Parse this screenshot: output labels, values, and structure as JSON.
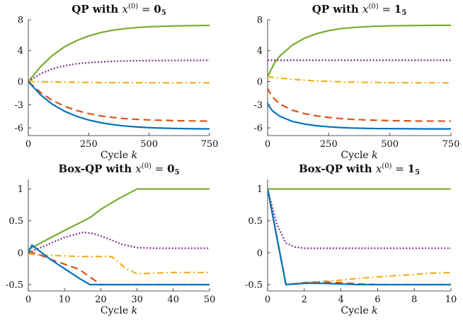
{
  "chart_data": [
    {
      "type": "line",
      "title": "QP with x^(0) = 0_5",
      "title_parts": [
        "QP with ",
        "x",
        "(0)",
        " = ",
        "0",
        "5"
      ],
      "xlabel_parts": [
        "Cycle ",
        "k"
      ],
      "xlim": [
        0,
        750
      ],
      "ylim": [
        -7,
        8
      ],
      "xticks": [
        0,
        250,
        500,
        750
      ],
      "yticks": [
        8,
        4,
        0,
        -3,
        -6
      ],
      "series": [
        {
          "name": "green",
          "color": "#77AC30",
          "style": "solid",
          "x": [
            0,
            50,
            100,
            150,
            200,
            250,
            300,
            350,
            400,
            450,
            500,
            550,
            600,
            650,
            700,
            750
          ],
          "y": [
            0,
            1.9,
            3.4,
            4.5,
            5.3,
            5.9,
            6.35,
            6.65,
            6.85,
            7.0,
            7.1,
            7.15,
            7.2,
            7.23,
            7.25,
            7.27
          ]
        },
        {
          "name": "purple",
          "color": "#7E2F8E",
          "style": "dotted",
          "x": [
            0,
            50,
            100,
            150,
            200,
            250,
            300,
            350,
            400,
            450,
            500,
            550,
            600,
            650,
            700,
            750
          ],
          "y": [
            0,
            1.0,
            1.65,
            2.05,
            2.3,
            2.45,
            2.55,
            2.62,
            2.66,
            2.69,
            2.71,
            2.72,
            2.73,
            2.74,
            2.74,
            2.75
          ]
        },
        {
          "name": "yellow",
          "color": "#EDB120",
          "style": "dashdot",
          "x": [
            0,
            50,
            100,
            150,
            200,
            250,
            300,
            350,
            400,
            450,
            500,
            550,
            600,
            650,
            700,
            750
          ],
          "y": [
            0,
            -0.02,
            -0.05,
            -0.08,
            -0.1,
            -0.12,
            -0.13,
            -0.14,
            -0.15,
            -0.15,
            -0.16,
            -0.16,
            -0.16,
            -0.16,
            -0.16,
            -0.16
          ]
        },
        {
          "name": "orange",
          "color": "#D95319",
          "style": "dashed",
          "x": [
            0,
            50,
            100,
            150,
            200,
            250,
            300,
            350,
            400,
            450,
            500,
            550,
            600,
            650,
            700,
            750
          ],
          "y": [
            0,
            -1.4,
            -2.45,
            -3.2,
            -3.75,
            -4.15,
            -4.45,
            -4.65,
            -4.8,
            -4.9,
            -4.97,
            -5.02,
            -5.06,
            -5.09,
            -5.11,
            -5.12
          ]
        },
        {
          "name": "blue",
          "color": "#0072BD",
          "style": "solid",
          "x": [
            0,
            50,
            100,
            150,
            200,
            250,
            300,
            350,
            400,
            450,
            500,
            550,
            600,
            650,
            700,
            750
          ],
          "y": [
            0,
            -1.7,
            -2.95,
            -3.85,
            -4.5,
            -4.98,
            -5.33,
            -5.58,
            -5.76,
            -5.88,
            -5.97,
            -6.03,
            -6.07,
            -6.1,
            -6.12,
            -6.13
          ]
        }
      ]
    },
    {
      "type": "line",
      "title": "QP with x^(0) = 1_5",
      "title_parts": [
        "QP with ",
        "x",
        "(0)",
        " = ",
        "1",
        "5"
      ],
      "xlabel_parts": [
        "Cycle ",
        "k"
      ],
      "xlim": [
        0,
        750
      ],
      "ylim": [
        -7,
        8
      ],
      "xticks": [
        0,
        250,
        500,
        750
      ],
      "yticks": [
        8,
        4,
        0,
        -3,
        -6
      ],
      "series": [
        {
          "name": "green",
          "color": "#77AC30",
          "style": "solid",
          "x": [
            0,
            10,
            30,
            50,
            100,
            150,
            200,
            250,
            300,
            350,
            400,
            450,
            500,
            550,
            600,
            650,
            700,
            750
          ],
          "y": [
            0.6,
            1.3,
            2.5,
            3.3,
            4.7,
            5.6,
            6.2,
            6.6,
            6.85,
            7.0,
            7.1,
            7.17,
            7.21,
            7.24,
            7.26,
            7.27,
            7.28,
            7.28
          ]
        },
        {
          "name": "purple",
          "color": "#7E2F8E",
          "style": "dotted",
          "x": [
            0,
            5,
            100,
            200,
            300,
            400,
            500,
            600,
            700,
            750
          ],
          "y": [
            2.75,
            2.75,
            2.75,
            2.75,
            2.75,
            2.75,
            2.75,
            2.75,
            2.75,
            2.75
          ]
        },
        {
          "name": "yellow",
          "color": "#EDB120",
          "style": "dashdot",
          "x": [
            0,
            5,
            50,
            100,
            150,
            200,
            250,
            300,
            400,
            500,
            600,
            700,
            750
          ],
          "y": [
            0.65,
            0.6,
            0.45,
            0.3,
            0.18,
            0.08,
            0.02,
            -0.04,
            -0.1,
            -0.14,
            -0.16,
            -0.17,
            -0.17
          ]
        },
        {
          "name": "orange",
          "color": "#D95319",
          "style": "dashed",
          "x": [
            0,
            1,
            20,
            50,
            100,
            150,
            200,
            250,
            300,
            350,
            400,
            450,
            500,
            550,
            600,
            650,
            700,
            750
          ],
          "y": [
            -0.8,
            -1.0,
            -2.0,
            -2.9,
            -3.7,
            -4.15,
            -4.45,
            -4.65,
            -4.8,
            -4.9,
            -4.97,
            -5.02,
            -5.06,
            -5.09,
            -5.11,
            -5.12,
            -5.12,
            -5.12
          ]
        },
        {
          "name": "blue",
          "color": "#0072BD",
          "style": "solid",
          "x": [
            0,
            1,
            20,
            50,
            100,
            150,
            200,
            250,
            300,
            350,
            400,
            450,
            500,
            550,
            600,
            650,
            700,
            750
          ],
          "y": [
            -2.7,
            -3.0,
            -3.8,
            -4.5,
            -5.15,
            -5.5,
            -5.72,
            -5.86,
            -5.96,
            -6.02,
            -6.06,
            -6.09,
            -6.1,
            -6.11,
            -6.12,
            -6.13,
            -6.13,
            -6.13
          ]
        }
      ]
    },
    {
      "type": "line",
      "title": "Box-QP with x^(0) = 0_5",
      "title_parts": [
        "Box-QP with ",
        "x",
        "(0)",
        " = ",
        "0",
        "5"
      ],
      "xlabel_parts": [
        "Cycle ",
        "k"
      ],
      "xlim": [
        0,
        50
      ],
      "ylim": [
        -0.6,
        1.15
      ],
      "xticks": [
        0,
        10,
        20,
        30,
        40,
        50
      ],
      "yticks": [
        1,
        0.5,
        0,
        -0.5
      ],
      "series": [
        {
          "name": "green",
          "color": "#77AC30",
          "style": "solid",
          "x": [
            0,
            5,
            10,
            17,
            20,
            25,
            30,
            35,
            40,
            45,
            50
          ],
          "y": [
            0.05,
            0.2,
            0.35,
            0.55,
            0.68,
            0.85,
            1.0,
            1.0,
            1.0,
            1.0,
            1.0
          ]
        },
        {
          "name": "purple",
          "color": "#7E2F8E",
          "style": "dotted",
          "x": [
            0,
            5,
            10,
            15,
            18,
            22,
            26,
            30,
            35,
            40,
            45,
            50
          ],
          "y": [
            0.0,
            0.12,
            0.24,
            0.32,
            0.3,
            0.22,
            0.13,
            0.08,
            0.07,
            0.07,
            0.07,
            0.07
          ]
        },
        {
          "name": "yellow",
          "color": "#EDB120",
          "style": "dashdot",
          "x": [
            0,
            5,
            10,
            15,
            20,
            23,
            27,
            30,
            35,
            40,
            45,
            50
          ],
          "y": [
            -0.02,
            -0.04,
            -0.05,
            -0.06,
            -0.06,
            -0.06,
            -0.25,
            -0.33,
            -0.32,
            -0.31,
            -0.31,
            -0.31
          ]
        },
        {
          "name": "orange",
          "color": "#D95319",
          "style": "dashed",
          "x": [
            0,
            3,
            6,
            10,
            14,
            17,
            20,
            25,
            30,
            40,
            50
          ],
          "y": [
            0.02,
            -0.03,
            -0.1,
            -0.18,
            -0.26,
            -0.38,
            -0.5,
            -0.5,
            -0.5,
            -0.5,
            -0.5
          ]
        },
        {
          "name": "blue",
          "color": "#0072BD",
          "style": "solid",
          "x": [
            0,
            1,
            3,
            6,
            10,
            14,
            17,
            20,
            25,
            30,
            40,
            50
          ],
          "y": [
            0.0,
            0.12,
            0.03,
            -0.1,
            -0.25,
            -0.4,
            -0.5,
            -0.5,
            -0.5,
            -0.5,
            -0.5,
            -0.5
          ]
        }
      ]
    },
    {
      "type": "line",
      "title": "Box-QP with x^(0) = 1_5",
      "title_parts": [
        "Box-QP with ",
        "x",
        "(0)",
        " = ",
        "1",
        "5"
      ],
      "xlabel_parts": [
        "Cycle ",
        "k"
      ],
      "xlim": [
        0,
        10
      ],
      "ylim": [
        -0.6,
        1.15
      ],
      "xticks": [
        0,
        2,
        4,
        6,
        8,
        10
      ],
      "yticks": [
        1,
        0.5,
        0,
        -0.5
      ],
      "series": [
        {
          "name": "green",
          "color": "#77AC30",
          "style": "solid",
          "x": [
            0,
            2,
            4,
            6,
            8,
            10
          ],
          "y": [
            1.0,
            1.0,
            1.0,
            1.0,
            1.0,
            1.0
          ]
        },
        {
          "name": "purple",
          "color": "#7E2F8E",
          "style": "dotted",
          "x": [
            0,
            0.5,
            1,
            1.5,
            2,
            3,
            4,
            6,
            8,
            10
          ],
          "y": [
            1.0,
            0.45,
            0.15,
            0.09,
            0.07,
            0.07,
            0.07,
            0.07,
            0.07,
            0.07
          ]
        },
        {
          "name": "yellow",
          "color": "#EDB120",
          "style": "dashdot",
          "x": [
            0,
            1,
            2,
            3,
            4,
            5,
            6,
            7,
            8,
            9,
            10
          ],
          "y": [
            1.0,
            -0.5,
            -0.47,
            -0.45,
            -0.43,
            -0.4,
            -0.38,
            -0.36,
            -0.34,
            -0.32,
            -0.31
          ]
        },
        {
          "name": "orange",
          "color": "#D95319",
          "style": "dashed",
          "x": [
            0,
            1,
            2,
            3,
            4,
            5,
            6,
            8,
            10
          ],
          "y": [
            1.0,
            -0.5,
            -0.47,
            -0.46,
            -0.47,
            -0.49,
            -0.5,
            -0.5,
            -0.5
          ]
        },
        {
          "name": "blue",
          "color": "#0072BD",
          "style": "solid",
          "x": [
            0,
            1,
            2,
            3,
            4,
            5,
            6,
            8,
            10
          ],
          "y": [
            1.0,
            -0.5,
            -0.48,
            -0.48,
            -0.49,
            -0.5,
            -0.5,
            -0.5,
            -0.5
          ]
        }
      ]
    }
  ]
}
